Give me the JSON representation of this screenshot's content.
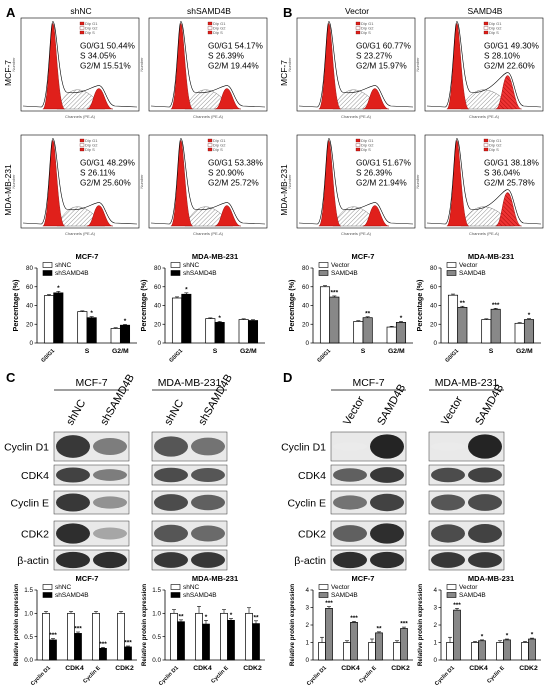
{
  "panels": {
    "A": {
      "letter": "A",
      "cols": [
        "shNC",
        "shSAMD4B"
      ],
      "rows": [
        "MCF-7",
        "MDA-MB-231"
      ],
      "stats": [
        [
          {
            "G0G1": "G0/G1 50.44%",
            "S": "S    34.05%",
            "G2M": "G2/M  15.51%"
          },
          {
            "G0G1": "G0/G1 54.17%",
            "S": "S    26.39%",
            "G2M": "G2/M  19.44%"
          }
        ],
        [
          {
            "G0G1": "G0/G1 48.29%",
            "S": "S    26.11%",
            "G2M": "G2/M  25.60%"
          },
          {
            "G0G1": "G0/G1 53.38%",
            "S": "S    20.90%",
            "G2M": "G2/M  25.72%"
          }
        ]
      ]
    },
    "B": {
      "letter": "B",
      "cols": [
        "Vector",
        "SAMD4B"
      ],
      "rows": [
        "MCF-7",
        "MDA-MB-231"
      ],
      "stats": [
        [
          {
            "G0G1": "G0/G1 60.77%",
            "S": "S    23.27%",
            "G2M": "G2/M  15.97%"
          },
          {
            "G0G1": "G0/G1 49.30%",
            "S": "S    28.10%",
            "G2M": "G2/M  22.60%"
          }
        ],
        [
          {
            "G0G1": "G0/G1 51.67%",
            "S": "S    26.39%",
            "G2M": "G2/M  21.94%"
          },
          {
            "G0G1": "G0/G1 38.18%",
            "S": "S    36.04%",
            "G2M": "G2/M  25.78%"
          }
        ]
      ]
    },
    "C": {
      "letter": "C",
      "groups": [
        "MCF-7",
        "MDA-MB-231"
      ],
      "lanes": [
        "shNC",
        "shSAMD4B"
      ],
      "proteins": [
        "Cyclin D1",
        "CDK4",
        "Cyclin E",
        "CDK2",
        "β-actin"
      ]
    },
    "D": {
      "letter": "D",
      "groups": [
        "MCF-7",
        "MDA-MB-231"
      ],
      "lanes": [
        "Vector",
        "SAMD4B"
      ],
      "proteins": [
        "Cyclin D1",
        "CDK4",
        "Cyclin E",
        "CDK2",
        "β-actin"
      ]
    }
  },
  "histogram_tiny": {
    "xlabel": "Channels (PE-A)",
    "ylabel": "Number",
    "legend": [
      "Dip G1",
      "Dip G2",
      "Dip S"
    ]
  },
  "chart_data": [
    {
      "id": "A-MCF7",
      "type": "bar",
      "title": "MCF-7",
      "ylabel": "Percentage (%)",
      "ylim": [
        0,
        80
      ],
      "yticks": [
        0,
        20,
        40,
        60,
        80
      ],
      "categories": [
        "G0/G1",
        "S",
        "G2/M"
      ],
      "series": [
        {
          "name": "shNC",
          "values": [
            50.5,
            33.5,
            15.5
          ],
          "err": [
            1.2,
            0.8,
            0.8
          ]
        },
        {
          "name": "shSAMD4B",
          "values": [
            53.5,
            27,
            19
          ],
          "err": [
            1.5,
            1.2,
            0.8
          ]
        }
      ],
      "sig": [
        "*",
        "*",
        "*"
      ],
      "colors": [
        "#ffffff",
        "#000000"
      ]
    },
    {
      "id": "A-MDA",
      "type": "bar",
      "title": "MDA-MB-231",
      "ylabel": "Percentage (%)",
      "ylim": [
        0,
        80
      ],
      "yticks": [
        0,
        20,
        40,
        60,
        80
      ],
      "categories": [
        "G0/G1",
        "S",
        "G2/M"
      ],
      "series": [
        {
          "name": "shNC",
          "values": [
            48,
            26,
            25
          ],
          "err": [
            1.2,
            0.8,
            0.8
          ]
        },
        {
          "name": "shSAMD4B",
          "values": [
            52,
            22,
            24
          ],
          "err": [
            1.5,
            1,
            0.8
          ]
        }
      ],
      "sig": [
        "*",
        "*",
        ""
      ],
      "colors": [
        "#ffffff",
        "#000000"
      ]
    },
    {
      "id": "B-MCF7",
      "type": "bar",
      "title": "MCF-7",
      "ylabel": "Percentage (%)",
      "ylim": [
        0,
        80
      ],
      "yticks": [
        0,
        20,
        40,
        60,
        80
      ],
      "categories": [
        "G0/G1",
        "S",
        "G2/M"
      ],
      "series": [
        {
          "name": "Vector",
          "values": [
            60,
            23,
            17
          ],
          "err": [
            1.2,
            0.8,
            0.8
          ]
        },
        {
          "name": "SAMD4B",
          "values": [
            49,
            27,
            22
          ],
          "err": [
            1.2,
            1,
            1
          ]
        }
      ],
      "sig": [
        "***",
        "**",
        "*"
      ],
      "colors": [
        "#ffffff",
        "#888888"
      ]
    },
    {
      "id": "B-MDA",
      "type": "bar",
      "title": "MDA-MB-231",
      "ylabel": "Percentage (%)",
      "ylim": [
        0,
        80
      ],
      "yticks": [
        0,
        20,
        40,
        60,
        80
      ],
      "categories": [
        "G0/G1",
        "S",
        "G2/M"
      ],
      "series": [
        {
          "name": "Vector",
          "values": [
            51,
            25,
            21
          ],
          "err": [
            1.2,
            0.8,
            0.8
          ]
        },
        {
          "name": "SAMD4B",
          "values": [
            38,
            36,
            25
          ],
          "err": [
            1.2,
            1,
            1
          ]
        }
      ],
      "sig": [
        "**",
        "***",
        "*"
      ],
      "colors": [
        "#ffffff",
        "#888888"
      ]
    },
    {
      "id": "C-MCF7",
      "type": "bar",
      "title": "MCF-7",
      "ylabel": "Relative protein expression",
      "ylim": [
        0,
        1.5
      ],
      "yticks": [
        0,
        0.5,
        1.0,
        1.5
      ],
      "ytickfmt": 1,
      "categories": [
        "Cyclin D1",
        "CDK4",
        "Cyclin E",
        "CDK2"
      ],
      "series": [
        {
          "name": "shNC",
          "values": [
            1,
            1,
            1,
            1
          ],
          "err": [
            0.04,
            0.04,
            0.04,
            0.04
          ]
        },
        {
          "name": "shSAMD4B",
          "values": [
            0.43,
            0.57,
            0.25,
            0.28
          ],
          "err": [
            0.03,
            0.03,
            0.02,
            0.02
          ]
        }
      ],
      "sig": [
        "***",
        "***",
        "***",
        "***"
      ],
      "colors": [
        "#ffffff",
        "#000000"
      ]
    },
    {
      "id": "C-MDA",
      "type": "bar",
      "title": "MDA-MB-231",
      "ylabel": "Relative protein expression",
      "ylim": [
        0,
        1.5
      ],
      "yticks": [
        0,
        0.5,
        1.0,
        1.5
      ],
      "ytickfmt": 1,
      "categories": [
        "Cyclin D1",
        "CDK4",
        "Cyclin E",
        "CDK2"
      ],
      "series": [
        {
          "name": "shNC",
          "values": [
            1,
            1,
            1,
            1
          ],
          "err": [
            0.08,
            0.15,
            0.08,
            0.12
          ]
        },
        {
          "name": "shSAMD4B",
          "values": [
            0.82,
            0.77,
            0.85,
            0.78
          ],
          "err": [
            0.04,
            0.08,
            0.04,
            0.06
          ]
        }
      ],
      "sig": [
        "**",
        "*",
        "*",
        "**"
      ],
      "colors": [
        "#ffffff",
        "#000000"
      ]
    },
    {
      "id": "D-MCF7",
      "type": "bar",
      "title": "MCF-7",
      "ylabel": "Relative protein expression",
      "ylim": [
        0,
        4
      ],
      "yticks": [
        0,
        1,
        2,
        3,
        4
      ],
      "categories": [
        "Cyclin D1",
        "CDK4",
        "Cyclin E",
        "CDK2"
      ],
      "series": [
        {
          "name": "Vector",
          "values": [
            1,
            1,
            1,
            1
          ],
          "err": [
            0.3,
            0.1,
            0.2,
            0.1
          ]
        },
        {
          "name": "SAMD4B",
          "values": [
            2.95,
            2.15,
            1.55,
            1.8
          ],
          "err": [
            0.1,
            0.06,
            0.06,
            0.08
          ]
        }
      ],
      "sig": [
        "***",
        "***",
        "**",
        "***"
      ],
      "colors": [
        "#ffffff",
        "#888888"
      ]
    },
    {
      "id": "D-MDA",
      "type": "bar",
      "title": "MDA-MB-231",
      "ylabel": "Relative protein expression",
      "ylim": [
        0,
        4
      ],
      "yticks": [
        0,
        1,
        2,
        3,
        4
      ],
      "categories": [
        "Cyclin D1",
        "CDK4",
        "Cyclin E",
        "CDK2"
      ],
      "series": [
        {
          "name": "Vector",
          "values": [
            1,
            1,
            1,
            1
          ],
          "err": [
            0.3,
            0.06,
            0.1,
            0.06
          ]
        },
        {
          "name": "SAMD4B",
          "values": [
            2.85,
            1.1,
            1.15,
            1.2
          ],
          "err": [
            0.1,
            0.05,
            0.05,
            0.05
          ]
        }
      ],
      "sig": [
        "***",
        "*",
        "*",
        "*"
      ],
      "colors": [
        "#ffffff",
        "#888888"
      ]
    }
  ]
}
